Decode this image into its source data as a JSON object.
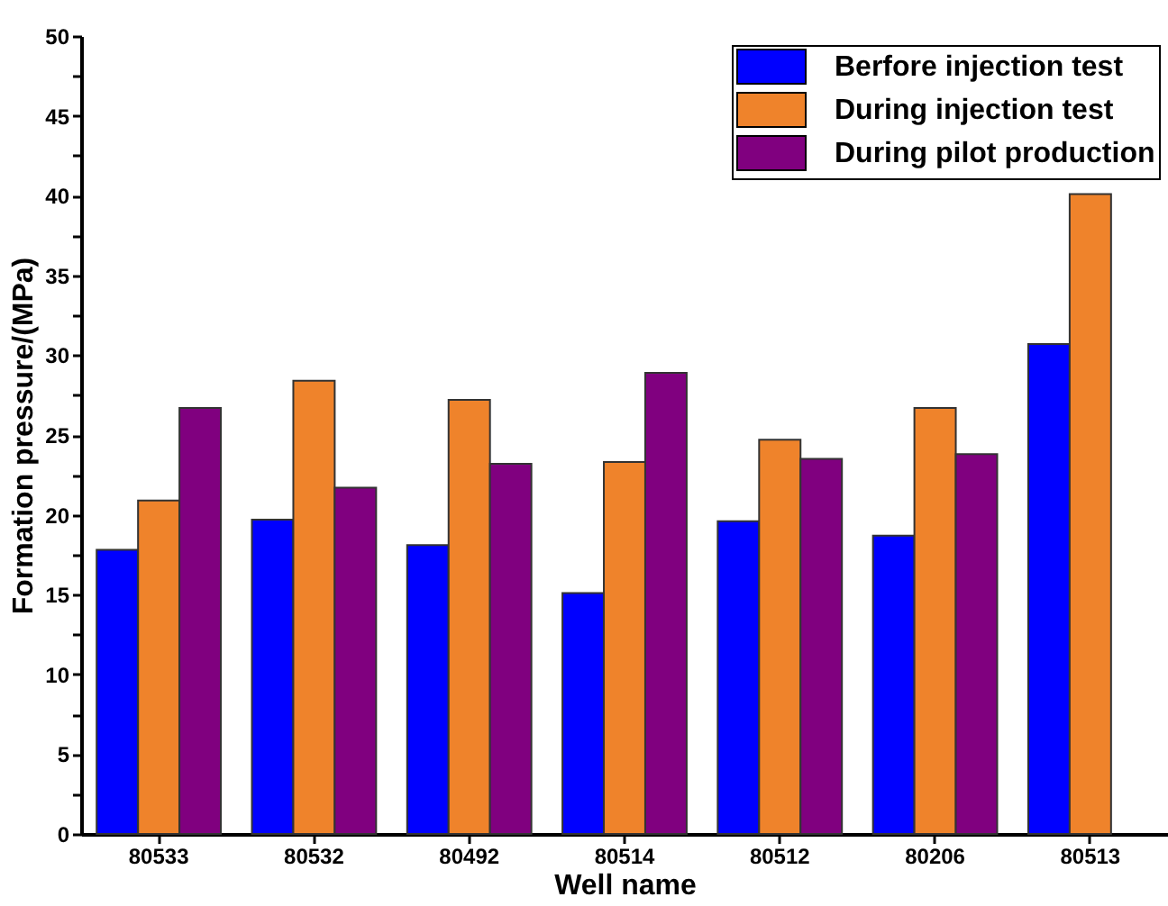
{
  "chart_data": {
    "type": "bar",
    "xlabel": "Well name",
    "ylabel": "Formation pressure/(MPa)",
    "categories": [
      "80533",
      "80532",
      "80492",
      "80514",
      "80512",
      "80206",
      "80513"
    ],
    "series": [
      {
        "name": "Berfore injection test",
        "color": "#0000ff",
        "values": [
          17.8,
          19.7,
          18.1,
          15.1,
          19.6,
          18.7,
          30.7
        ]
      },
      {
        "name": "During injection test",
        "color": "#ef832b",
        "values": [
          20.9,
          28.4,
          27.2,
          23.3,
          24.7,
          26.7,
          40.1
        ]
      },
      {
        "name": "During pilot production",
        "color": "#80007f",
        "values": [
          26.7,
          21.7,
          23.2,
          28.9,
          23.5,
          23.8,
          null
        ]
      }
    ],
    "ylim": [
      0,
      50
    ],
    "yticks": [
      0,
      {
        "value": 2.5,
        "label": null
      },
      5,
      {
        "value": 7.5,
        "label": null
      },
      10,
      {
        "value": 12.5,
        "label": null
      },
      15,
      {
        "value": 17.5,
        "label": null
      },
      20,
      {
        "value": 22.5,
        "label": null
      },
      25,
      {
        "value": 27.5,
        "label": null
      },
      30,
      {
        "value": 32.5,
        "label": null
      },
      35,
      {
        "value": 37.5,
        "label": null
      },
      40,
      {
        "value": 42.5,
        "label": null
      },
      45,
      {
        "value": 47.5,
        "label": null
      },
      50
    ],
    "grid": false,
    "legend": "top right"
  }
}
